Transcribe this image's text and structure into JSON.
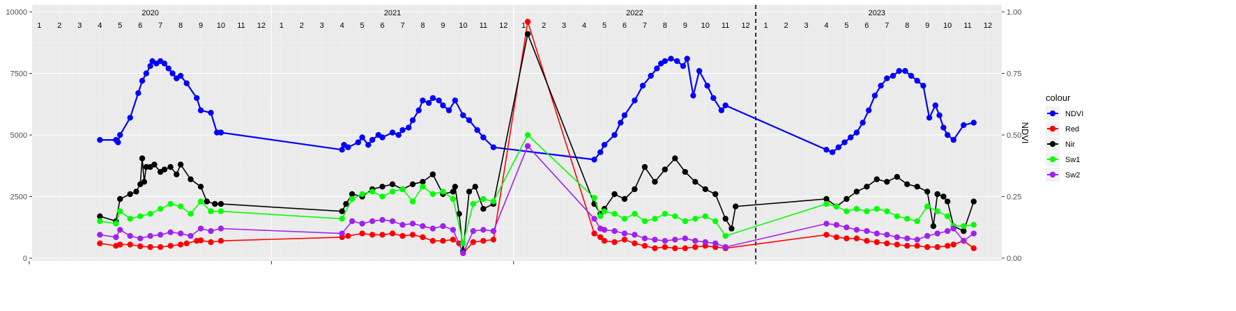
{
  "chart_data": {
    "type": "line",
    "title": "",
    "xlabel": "",
    "ylabel_left": "",
    "ylabel_right": "NDVI",
    "ylim_left": [
      0,
      10000
    ],
    "ylim_right": [
      0.0,
      1.0
    ],
    "yticks_left": [
      "0",
      "2500",
      "5000",
      "7500",
      "10000"
    ],
    "yticks_right": [
      "0.00",
      "0.25",
      "0.50",
      "0.75",
      "1.00"
    ],
    "x_unit": "month index (Jan 2020 = 1)",
    "xlim": [
      0.0,
      48.5
    ],
    "year_labels": [
      {
        "label": "2020",
        "x": 6.5
      },
      {
        "label": "2021",
        "x": 18.5
      },
      {
        "label": "2022",
        "x": 30.5
      },
      {
        "label": "2023",
        "x": 42.5
      }
    ],
    "month_labels": [
      "1",
      "2",
      "3",
      "4",
      "5",
      "6",
      "7",
      "8",
      "9",
      "10",
      "11",
      "12",
      "1",
      "2",
      "3",
      "4",
      "5",
      "6",
      "7",
      "8",
      "9",
      "10",
      "11",
      "12",
      "1",
      "2",
      "3",
      "4",
      "5",
      "6",
      "7",
      "8",
      "9",
      "10",
      "11",
      "12",
      "1",
      "2",
      "3",
      "4",
      "5",
      "6",
      "7",
      "8",
      "9",
      "10",
      "11",
      "12"
    ],
    "year_boundaries": [
      12.5,
      24.5,
      36.5
    ],
    "dashed_line_x": 36.5,
    "grid": true,
    "legend": {
      "title": "colour",
      "position": "right"
    },
    "series": [
      {
        "name": "NDVI",
        "color": "#0000ff",
        "axis": "right",
        "x": [
          4.0,
          4.8,
          4.9,
          5.0,
          5.5,
          5.9,
          6.1,
          6.3,
          6.5,
          6.6,
          6.8,
          7.0,
          7.2,
          7.4,
          7.6,
          7.8,
          8.0,
          8.3,
          8.8,
          9.0,
          9.5,
          9.8,
          10.0,
          16.0,
          16.1,
          16.3,
          16.8,
          17.0,
          17.3,
          17.5,
          17.8,
          18.0,
          18.5,
          18.8,
          19.0,
          19.3,
          19.5,
          19.8,
          20.0,
          20.3,
          20.5,
          20.8,
          21.0,
          21.3,
          21.6,
          22.0,
          22.3,
          22.7,
          23.0,
          23.5,
          28.5,
          28.8,
          29.0,
          29.5,
          29.8,
          30.0,
          30.5,
          30.9,
          31.3,
          31.6,
          31.8,
          32.0,
          32.3,
          32.6,
          32.9,
          33.1,
          33.4,
          33.7,
          34.1,
          34.4,
          34.8,
          35.0,
          40.0,
          40.3,
          40.6,
          40.9,
          41.2,
          41.5,
          41.8,
          42.1,
          42.4,
          42.7,
          43.0,
          43.3,
          43.6,
          43.9,
          44.2,
          44.5,
          44.8,
          45.1,
          45.4,
          45.6,
          45.8,
          46.0,
          46.3,
          46.8,
          47.3
        ],
        "y": [
          0.48,
          0.48,
          0.47,
          0.5,
          0.57,
          0.67,
          0.72,
          0.75,
          0.78,
          0.8,
          0.79,
          0.8,
          0.79,
          0.77,
          0.75,
          0.73,
          0.74,
          0.71,
          0.65,
          0.6,
          0.59,
          0.51,
          0.51,
          0.44,
          0.46,
          0.45,
          0.47,
          0.49,
          0.46,
          0.48,
          0.5,
          0.49,
          0.51,
          0.5,
          0.52,
          0.53,
          0.56,
          0.6,
          0.64,
          0.63,
          0.65,
          0.64,
          0.62,
          0.6,
          0.64,
          0.58,
          0.56,
          0.52,
          0.49,
          0.45,
          0.4,
          0.43,
          0.46,
          0.5,
          0.55,
          0.58,
          0.64,
          0.7,
          0.74,
          0.77,
          0.79,
          0.8,
          0.81,
          0.8,
          0.78,
          0.81,
          0.66,
          0.76,
          0.7,
          0.65,
          0.6,
          0.62,
          0.44,
          0.43,
          0.45,
          0.47,
          0.49,
          0.51,
          0.55,
          0.6,
          0.66,
          0.7,
          0.73,
          0.74,
          0.76,
          0.76,
          0.74,
          0.72,
          0.7,
          0.57,
          0.62,
          0.58,
          0.53,
          0.5,
          0.48,
          0.54,
          0.55
        ]
      },
      {
        "name": "Red",
        "color": "#ff0000",
        "axis": "left",
        "x": [
          4.0,
          4.8,
          5.0,
          5.5,
          6.0,
          6.5,
          7.0,
          7.5,
          8.0,
          8.3,
          8.8,
          9.0,
          9.5,
          10.0,
          16.0,
          16.3,
          17.0,
          17.5,
          18.0,
          18.5,
          19.0,
          19.5,
          20.0,
          20.5,
          21.0,
          21.5,
          21.8,
          22.0,
          22.5,
          23.0,
          23.5,
          25.2,
          28.5,
          28.8,
          29.0,
          29.5,
          30.0,
          30.5,
          31.0,
          31.5,
          32.0,
          32.5,
          33.0,
          33.5,
          34.0,
          34.5,
          35.0,
          40.0,
          40.5,
          41.0,
          41.5,
          42.0,
          42.5,
          43.0,
          43.5,
          44.0,
          44.5,
          45.0,
          45.5,
          46.0,
          46.3,
          46.8,
          47.3
        ],
        "y": [
          600,
          500,
          550,
          550,
          480,
          450,
          450,
          500,
          550,
          600,
          700,
          720,
          650,
          700,
          850,
          900,
          1000,
          950,
          950,
          1000,
          900,
          950,
          850,
          700,
          700,
          750,
          600,
          200,
          650,
          700,
          750,
          9600,
          1000,
          850,
          700,
          650,
          750,
          600,
          500,
          400,
          450,
          400,
          400,
          450,
          500,
          450,
          400,
          950,
          850,
          800,
          800,
          700,
          650,
          600,
          550,
          500,
          500,
          450,
          450,
          500,
          550,
          700,
          400
        ]
      },
      {
        "name": "Nir",
        "color": "#000000",
        "axis": "left",
        "x": [
          4.0,
          4.8,
          5.0,
          5.5,
          5.8,
          6.0,
          6.1,
          6.2,
          6.3,
          6.5,
          6.7,
          7.0,
          7.2,
          7.5,
          7.8,
          8.0,
          8.5,
          9.0,
          9.3,
          9.7,
          10.0,
          16.0,
          16.2,
          16.5,
          17.0,
          17.5,
          18.0,
          18.5,
          19.0,
          19.5,
          20.0,
          20.5,
          21.0,
          21.5,
          21.6,
          21.8,
          22.0,
          22.3,
          22.6,
          23.0,
          23.5,
          25.2,
          28.5,
          28.8,
          29.0,
          29.5,
          30.0,
          30.5,
          31.0,
          31.5,
          32.0,
          32.5,
          33.0,
          33.5,
          34.0,
          34.5,
          35.0,
          35.3,
          35.5,
          40.0,
          40.5,
          41.0,
          41.5,
          42.0,
          42.5,
          43.0,
          43.5,
          44.0,
          44.5,
          45.0,
          45.3,
          45.5,
          45.8,
          46.0,
          46.3,
          46.8,
          47.3
        ],
        "y": [
          1700,
          1500,
          2400,
          2600,
          2700,
          3000,
          4050,
          3100,
          3700,
          3700,
          3800,
          3500,
          3600,
          3700,
          3400,
          3800,
          3200,
          2900,
          2300,
          2200,
          2200,
          1900,
          2200,
          2600,
          2500,
          2800,
          2900,
          3000,
          2800,
          3000,
          3100,
          3400,
          2600,
          2700,
          2900,
          1800,
          300,
          2700,
          2900,
          2000,
          2200,
          9100,
          2200,
          1800,
          2000,
          2600,
          2400,
          2800,
          3700,
          3100,
          3600,
          4050,
          3500,
          3100,
          2800,
          2600,
          1600,
          1200,
          2100,
          2400,
          2100,
          2400,
          2700,
          2900,
          3200,
          3100,
          3300,
          3000,
          2900,
          2700,
          1300,
          2600,
          2500,
          2300,
          1300,
          1100,
          2300
        ]
      },
      {
        "name": "Sw1",
        "color": "#00ff00",
        "axis": "left",
        "x": [
          4.0,
          4.8,
          5.0,
          5.5,
          6.0,
          6.5,
          7.0,
          7.5,
          8.0,
          8.5,
          9.0,
          9.5,
          10.0,
          16.0,
          16.5,
          17.0,
          17.5,
          18.0,
          18.5,
          19.0,
          19.5,
          20.0,
          20.5,
          21.0,
          21.5,
          22.0,
          22.5,
          23.0,
          23.5,
          25.2,
          28.5,
          28.8,
          29.0,
          29.5,
          30.0,
          30.5,
          31.0,
          31.5,
          32.0,
          32.5,
          33.0,
          33.5,
          34.0,
          34.5,
          35.0,
          40.0,
          40.5,
          41.0,
          41.5,
          42.0,
          42.5,
          43.0,
          43.5,
          44.0,
          44.5,
          45.0,
          45.5,
          46.0,
          46.3,
          46.8,
          47.3
        ],
        "y": [
          1500,
          1400,
          1900,
          1600,
          1700,
          1800,
          2000,
          2200,
          2100,
          1800,
          2300,
          1900,
          1900,
          1600,
          2400,
          2600,
          2700,
          2500,
          2700,
          2800,
          2300,
          2900,
          2600,
          2700,
          2400,
          600,
          2200,
          2400,
          2300,
          5000,
          2450,
          1700,
          1900,
          1800,
          1600,
          1800,
          1500,
          1600,
          1800,
          1700,
          1500,
          1600,
          1700,
          1500,
          900,
          2200,
          2100,
          1900,
          2000,
          1900,
          2000,
          1900,
          1700,
          1600,
          1500,
          2100,
          1900,
          1700,
          1300,
          1300,
          1350
        ]
      },
      {
        "name": "Sw2",
        "color": "#a020f0",
        "axis": "left",
        "x": [
          4.0,
          4.8,
          5.0,
          5.5,
          6.0,
          6.5,
          7.0,
          7.5,
          8.0,
          8.5,
          9.0,
          9.5,
          10.0,
          16.0,
          16.5,
          17.0,
          17.5,
          18.0,
          18.5,
          19.0,
          19.5,
          20.0,
          20.5,
          21.0,
          21.5,
          22.0,
          22.5,
          23.0,
          23.5,
          25.2,
          28.5,
          28.8,
          29.0,
          29.5,
          30.0,
          30.5,
          31.0,
          31.5,
          32.0,
          32.5,
          33.0,
          33.5,
          34.0,
          34.5,
          35.0,
          40.0,
          40.5,
          41.0,
          41.5,
          42.0,
          42.5,
          43.0,
          43.5,
          44.0,
          44.5,
          45.0,
          45.5,
          46.0,
          46.3,
          46.8,
          47.3
        ],
        "y": [
          950,
          850,
          1150,
          900,
          800,
          900,
          950,
          1050,
          1000,
          900,
          1200,
          1100,
          1200,
          1000,
          1500,
          1400,
          1500,
          1550,
          1500,
          1350,
          1400,
          1300,
          1200,
          1300,
          1150,
          200,
          1100,
          1150,
          1100,
          4550,
          1600,
          1200,
          1150,
          1100,
          1000,
          950,
          800,
          750,
          700,
          750,
          800,
          700,
          650,
          600,
          450,
          1400,
          1350,
          1250,
          1150,
          1100,
          1000,
          950,
          850,
          800,
          750,
          900,
          1000,
          1100,
          1200,
          700,
          1000
        ]
      }
    ]
  }
}
